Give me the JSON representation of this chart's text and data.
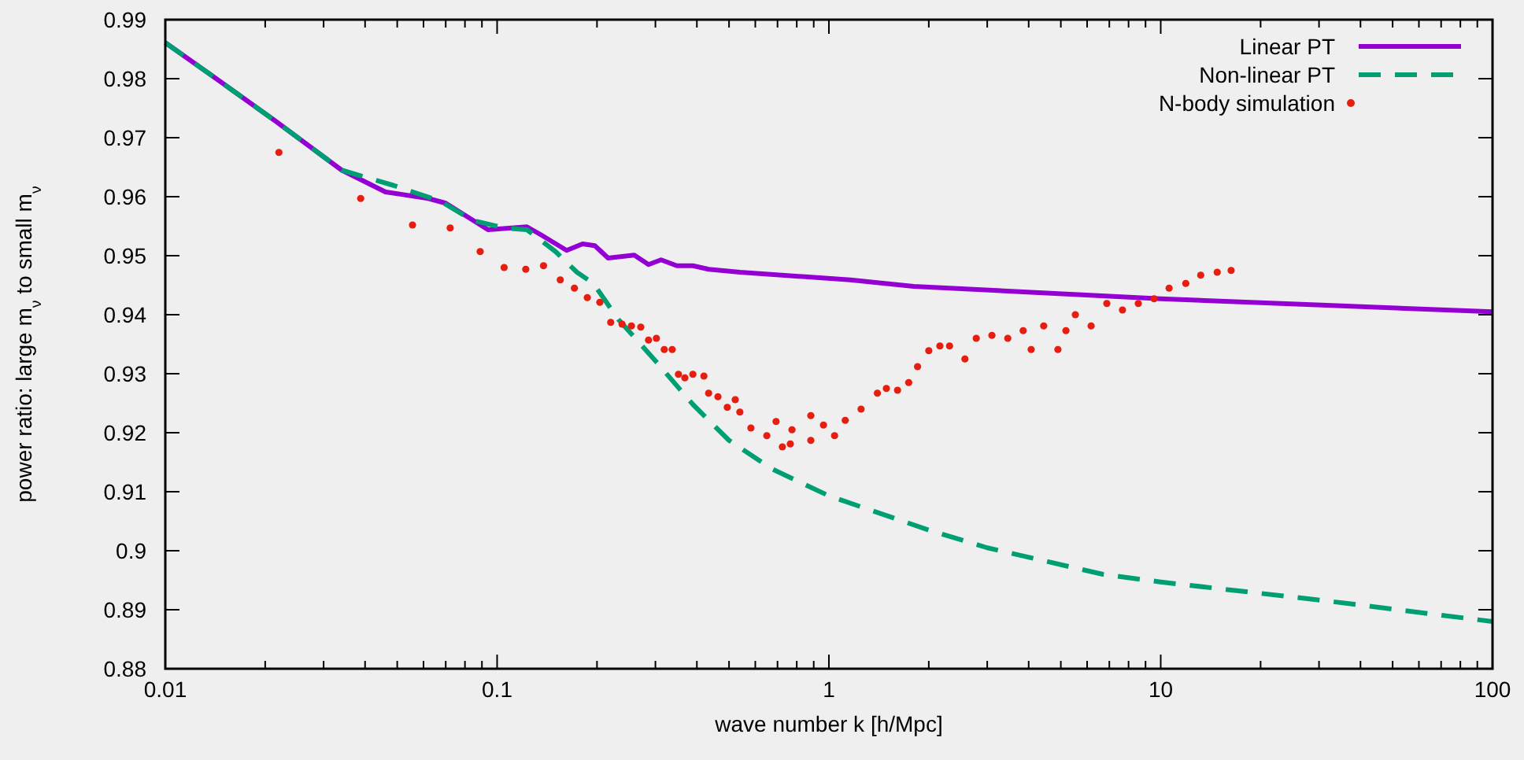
{
  "chart_data": {
    "type": "line",
    "xlabel": "wave number k [h/Mpc]",
    "ylabel": "power ratio: large m$_{ν}$ to small m$_{ν}$",
    "log": "x",
    "xlim": [
      0.01,
      100
    ],
    "ylim": [
      0.88,
      0.99
    ],
    "xticks": [
      0.01,
      {
        "value": 0.02,
        "label": null
      },
      {
        "value": 0.03,
        "label": null
      },
      {
        "value": 0.04,
        "label": null
      },
      {
        "value": 0.05,
        "label": null
      },
      {
        "value": 0.06,
        "label": null
      },
      {
        "value": 0.07,
        "label": null
      },
      {
        "value": 0.08,
        "label": null
      },
      {
        "value": 0.09,
        "label": null
      },
      0.1,
      {
        "value": 0.2,
        "label": null
      },
      {
        "value": 0.3,
        "label": null
      },
      {
        "value": 0.4,
        "label": null
      },
      {
        "value": 0.5,
        "label": null
      },
      {
        "value": 0.6,
        "label": null
      },
      {
        "value": 0.7,
        "label": null
      },
      {
        "value": 0.8,
        "label": null
      },
      {
        "value": 0.9,
        "label": null
      },
      1,
      {
        "value": 2,
        "label": null
      },
      {
        "value": 3,
        "label": null
      },
      {
        "value": 4,
        "label": null
      },
      {
        "value": 5,
        "label": null
      },
      {
        "value": 6,
        "label": null
      },
      {
        "value": 7,
        "label": null
      },
      {
        "value": 8,
        "label": null
      },
      {
        "value": 9,
        "label": null
      },
      10,
      {
        "value": 20,
        "label": null
      },
      {
        "value": 30,
        "label": null
      },
      {
        "value": 40,
        "label": null
      },
      {
        "value": 50,
        "label": null
      },
      {
        "value": 60,
        "label": null
      },
      {
        "value": 70,
        "label": null
      },
      {
        "value": 80,
        "label": null
      },
      {
        "value": 90,
        "label": null
      },
      100
    ],
    "yticks": [
      0.88,
      0.89,
      {
        "value": 0.9,
        "label": "0.9"
      },
      0.91,
      0.92,
      0.93,
      0.94,
      0.95,
      0.96,
      0.97,
      0.98,
      0.99
    ],
    "grid": false,
    "legend": "top right",
    "series": [
      {
        "name": "Linear PT",
        "line_style": "solid",
        "color": "#9400d3",
        "x": [
          0.01,
          0.0136,
          0.0215,
          0.034,
          0.0461,
          0.062,
          0.07,
          0.0939,
          0.123,
          0.135,
          0.162,
          0.181,
          0.197,
          0.216,
          0.259,
          0.286,
          0.312,
          0.348,
          0.389,
          0.434,
          0.539,
          1.16,
          1.8,
          10,
          31.6,
          100
        ],
        "values": [
          0.9861,
          0.9808,
          0.9728,
          0.9645,
          0.9608,
          0.9597,
          0.9589,
          0.9544,
          0.9549,
          0.9536,
          0.9509,
          0.952,
          0.9517,
          0.9496,
          0.9501,
          0.9485,
          0.9493,
          0.9483,
          0.9483,
          0.9477,
          0.9472,
          0.9459,
          0.9448,
          0.9427,
          0.9416,
          0.9405
        ]
      },
      {
        "name": "Non-linear PT",
        "line_style": "dashed",
        "color": "#009e73",
        "x": [
          0.01,
          0.0136,
          0.0215,
          0.034,
          0.0488,
          0.0677,
          0.0843,
          0.105,
          0.123,
          0.15,
          0.174,
          0.195,
          0.232,
          0.302,
          0.389,
          0.5,
          0.671,
          1,
          2,
          3,
          6.7,
          10,
          31.6,
          100
        ],
        "values": [
          0.9861,
          0.9808,
          0.9728,
          0.9645,
          0.9619,
          0.9592,
          0.956,
          0.9547,
          0.9544,
          0.9507,
          0.9472,
          0.9453,
          0.9392,
          0.932,
          0.9248,
          0.9187,
          0.9139,
          0.9093,
          0.9035,
          0.9005,
          0.896,
          0.8947,
          0.8915,
          0.888
        ]
      },
      {
        "name": "N-body simulation",
        "type": "scatter",
        "marker": "circle",
        "color": "#e51e10",
        "x": [
          0.022,
          0.0388,
          0.0556,
          0.0722,
          0.0889,
          0.105,
          0.122,
          0.138,
          0.155,
          0.171,
          0.187,
          0.204,
          0.22,
          0.238,
          0.254,
          0.271,
          0.286,
          0.302,
          0.319,
          0.337,
          0.352,
          0.368,
          0.389,
          0.42,
          0.434,
          0.463,
          0.494,
          0.522,
          0.539,
          0.582,
          0.65,
          0.693,
          0.724,
          0.765,
          0.774,
          0.882,
          0.882,
          0.963,
          1.04,
          1.12,
          1.25,
          1.4,
          1.49,
          1.61,
          1.74,
          1.85,
          2,
          2.16,
          2.31,
          2.57,
          2.78,
          3.1,
          3.46,
          3.85,
          4.07,
          4.44,
          4.9,
          5.18,
          5.53,
          6.17,
          6.88,
          7.67,
          8.56,
          9.55,
          10.6,
          11.9,
          13.2,
          14.8,
          16.3
        ],
        "values": [
          0.9675,
          0.9597,
          0.9552,
          0.9547,
          0.9507,
          0.948,
          0.9477,
          0.9483,
          0.9459,
          0.9445,
          0.9429,
          0.9421,
          0.9387,
          0.9384,
          0.9381,
          0.9379,
          0.9357,
          0.936,
          0.9341,
          0.9341,
          0.9299,
          0.9293,
          0.9299,
          0.9296,
          0.9267,
          0.9261,
          0.9243,
          0.9256,
          0.9235,
          0.9208,
          0.9195,
          0.9219,
          0.9176,
          0.9181,
          0.9205,
          0.9187,
          0.9229,
          0.9213,
          0.9195,
          0.9221,
          0.924,
          0.9267,
          0.9275,
          0.9272,
          0.9285,
          0.9312,
          0.9339,
          0.9347,
          0.9347,
          0.9325,
          0.936,
          0.9365,
          0.936,
          0.9373,
          0.9341,
          0.9381,
          0.9341,
          0.9373,
          0.94,
          0.9381,
          0.9419,
          0.9408,
          0.9419,
          0.9427,
          0.9445,
          0.9453,
          0.9467,
          0.9472,
          0.9475
        ]
      }
    ]
  }
}
